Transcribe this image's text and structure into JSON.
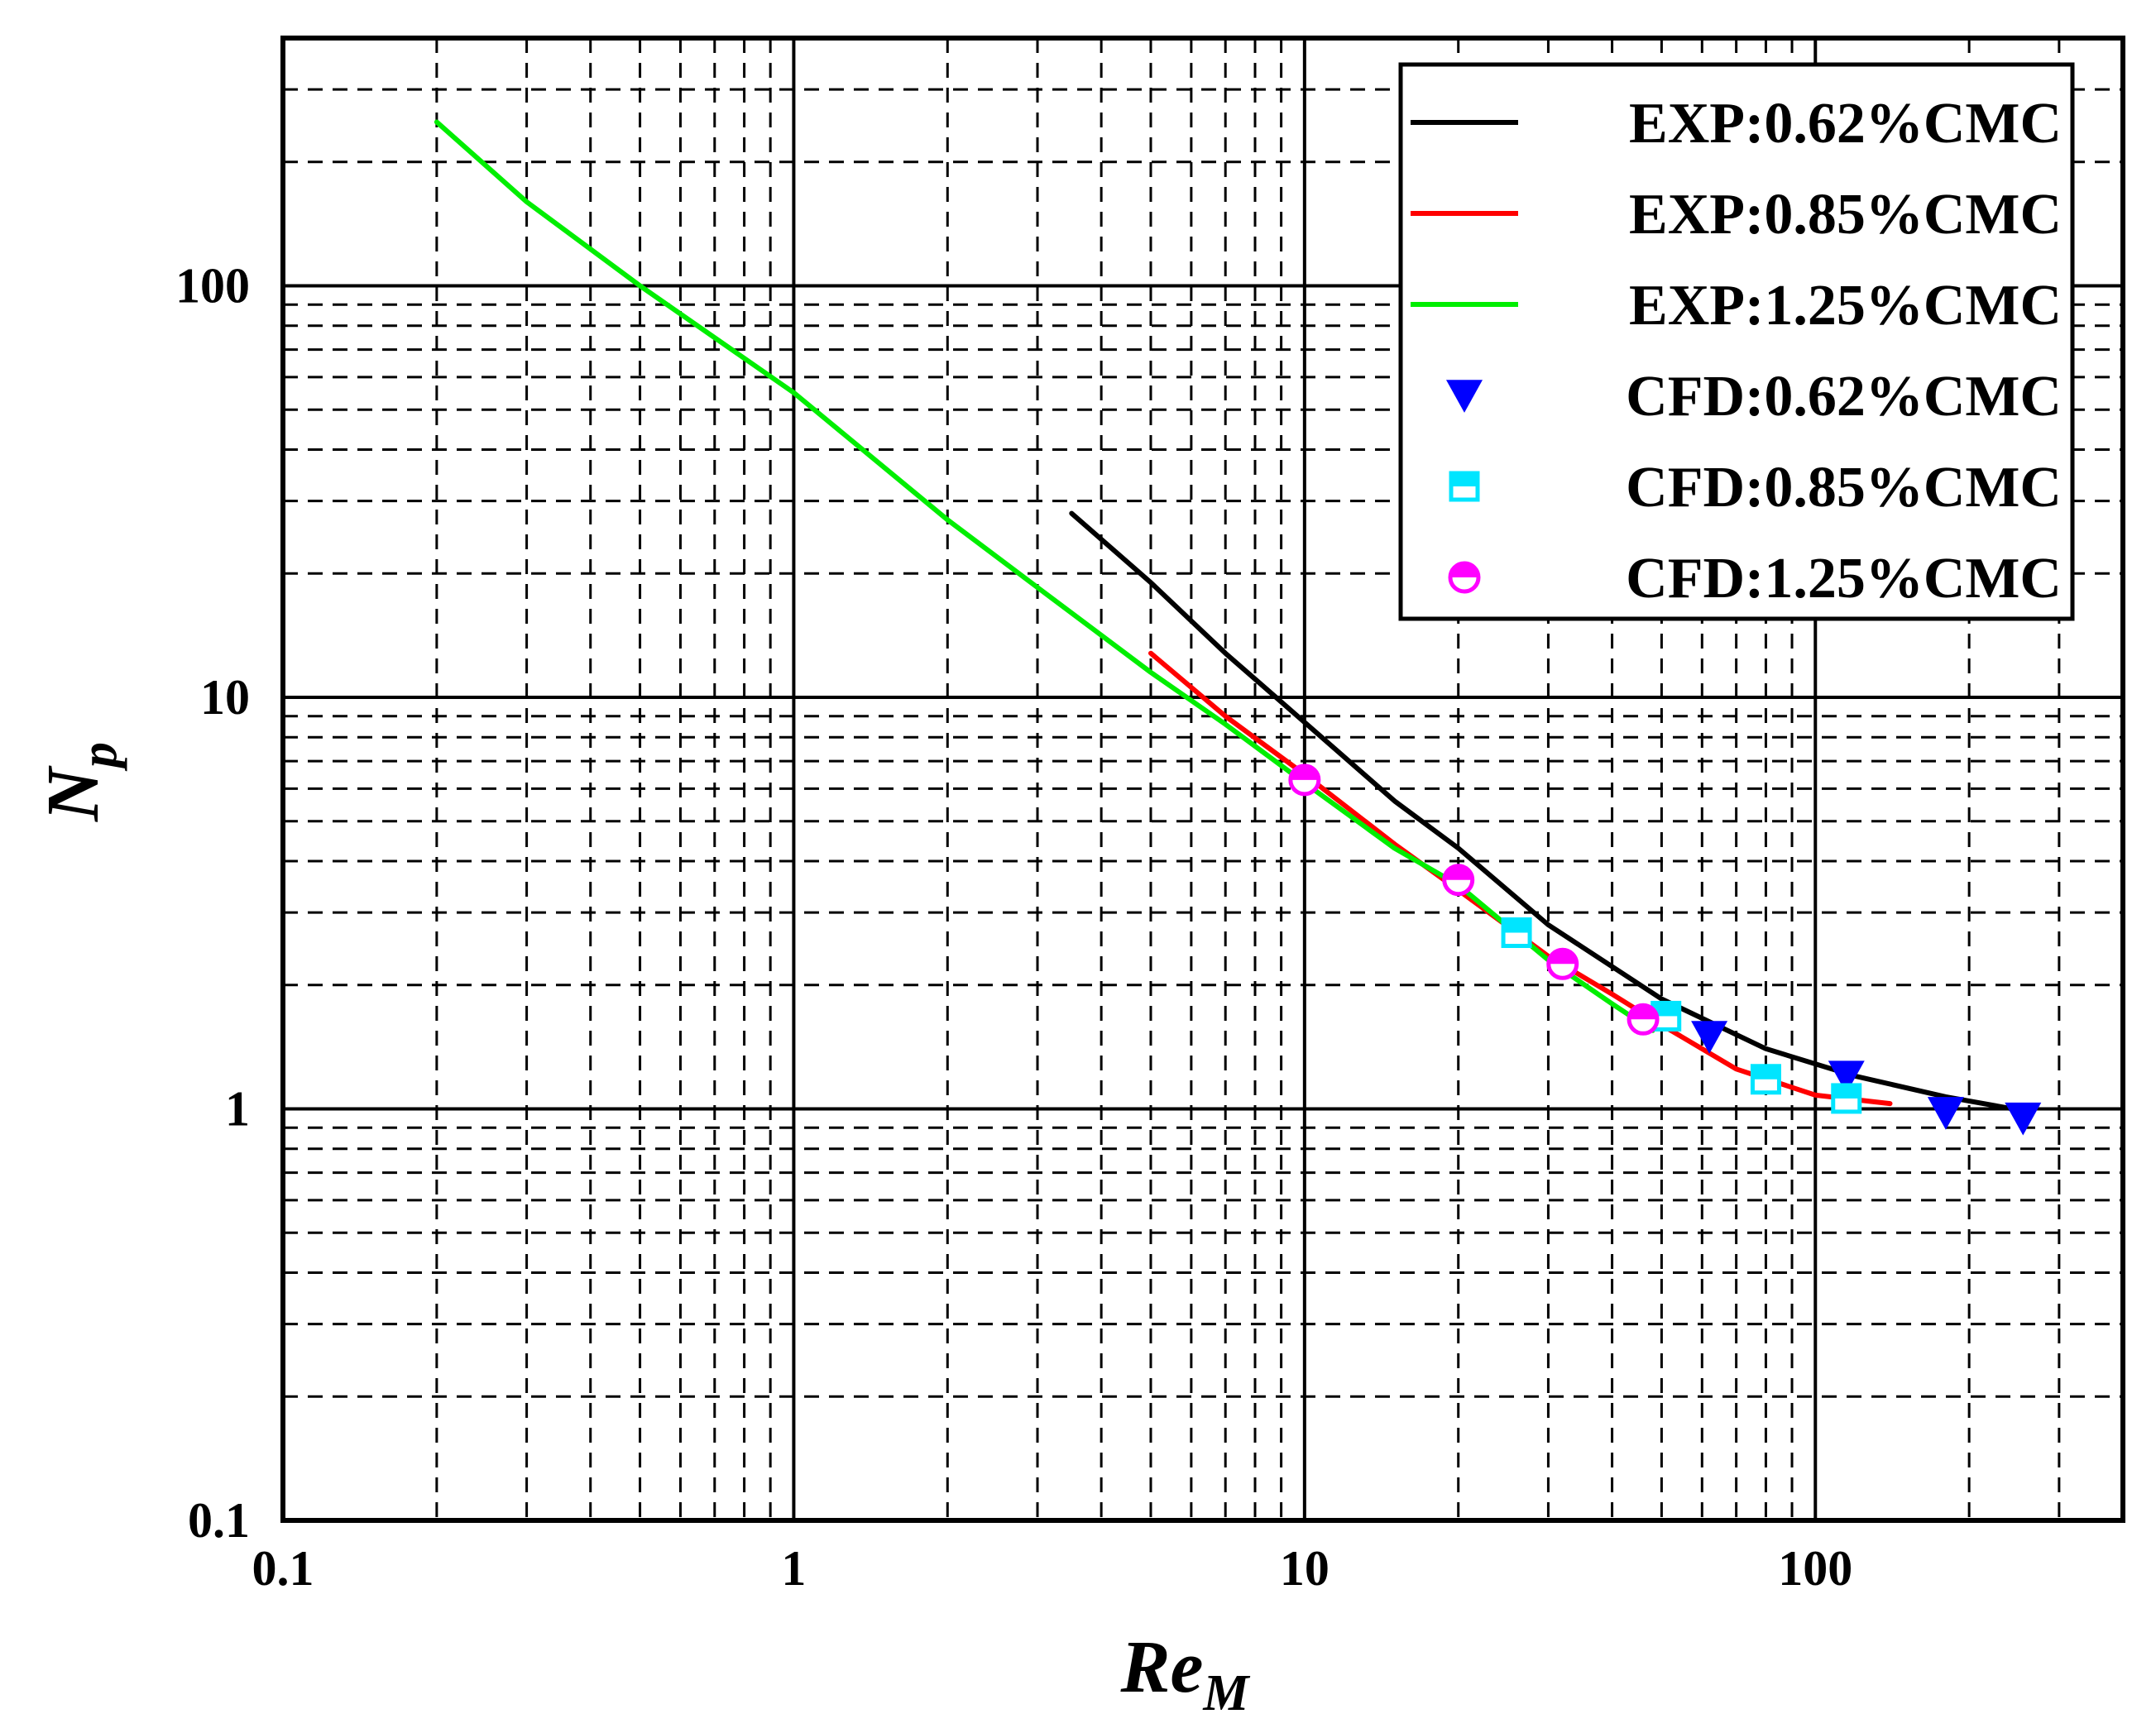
{
  "chart_data": {
    "type": "line",
    "xscale": "log",
    "yscale": "log",
    "xlim": [
      0.1,
      400
    ],
    "ylim": [
      0.1,
      400
    ],
    "grid": true,
    "legend_position": "top-right",
    "xlabel": {
      "main": "Re",
      "sub": "M"
    },
    "ylabel": {
      "main": "N",
      "sub": "p"
    },
    "xticks": [
      {
        "value": 0.1,
        "label": "0.1"
      },
      {
        "value": 1,
        "label": "1"
      },
      {
        "value": 10,
        "label": "10"
      },
      {
        "value": 100,
        "label": "100"
      }
    ],
    "yticks": [
      {
        "value": 0.1,
        "label": "0.1"
      },
      {
        "value": 1,
        "label": "1"
      },
      {
        "value": 10,
        "label": "10"
      },
      {
        "value": 100,
        "label": "100"
      }
    ],
    "series": [
      {
        "name": "EXP:0.62%CMC",
        "kind": "line",
        "color": "#000000",
        "x": [
          3.5,
          5,
          7,
          10,
          15,
          20,
          30,
          50,
          80,
          120,
          180,
          255
        ],
        "y": [
          28,
          19,
          12.8,
          8.7,
          5.6,
          4.3,
          2.8,
          1.85,
          1.4,
          1.2,
          1.07,
          0.99
        ]
      },
      {
        "name": "EXP:0.85%CMC",
        "kind": "line",
        "color": "#ff0000",
        "x": [
          5,
          7,
          10,
          15,
          20,
          30,
          40,
          50,
          70,
          100,
          140
        ],
        "y": [
          12.8,
          9,
          6.5,
          4.4,
          3.4,
          2.35,
          1.9,
          1.6,
          1.25,
          1.08,
          1.03
        ]
      },
      {
        "name": "EXP:1.25%CMC",
        "kind": "line",
        "color": "#00ee00",
        "x": [
          0.2,
          0.3,
          0.5,
          1,
          2,
          3,
          5,
          7,
          10,
          15,
          20,
          30,
          40,
          48
        ],
        "y": [
          250,
          160,
          100,
          55,
          27,
          18.5,
          11.5,
          8.6,
          6.2,
          4.3,
          3.5,
          2.3,
          1.8,
          1.55
        ]
      },
      {
        "name": "CFD:0.62%CMC",
        "kind": "markers",
        "marker": "triangle-down",
        "color": "#0000ff",
        "x": [
          62,
          115,
          180,
          255
        ],
        "y": [
          1.5,
          1.2,
          0.98,
          0.95
        ]
      },
      {
        "name": "CFD:0.85%CMC",
        "kind": "markers",
        "marker": "square-half",
        "color": "#00e5ff",
        "x": [
          26,
          51,
          80,
          115
        ],
        "y": [
          2.68,
          1.68,
          1.18,
          1.06
        ]
      },
      {
        "name": "CFD:1.25%CMC",
        "kind": "markers",
        "marker": "circle-half",
        "color": "#ff00ff",
        "x": [
          10,
          20,
          32,
          46
        ],
        "y": [
          6.3,
          3.6,
          2.25,
          1.65
        ]
      }
    ]
  }
}
